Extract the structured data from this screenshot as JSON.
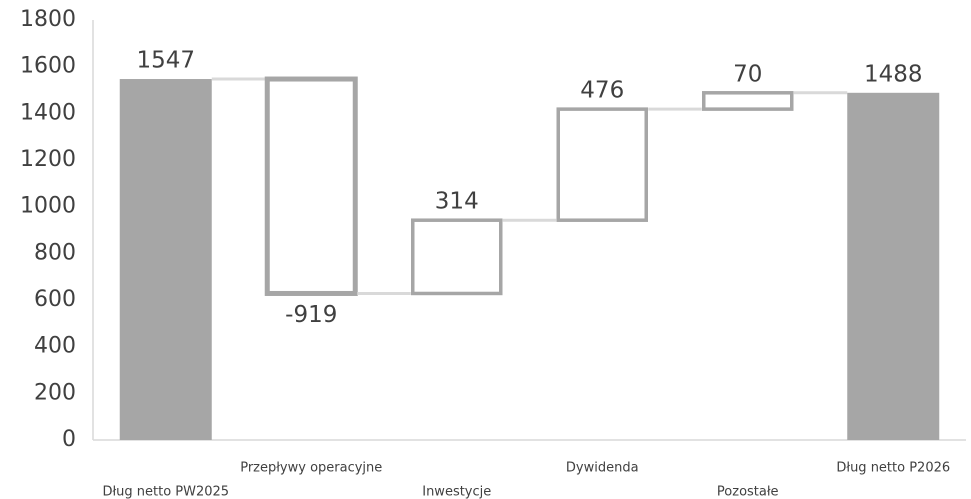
{
  "chart_data": {
    "type": "waterfall",
    "categories": [
      "Dług netto PW2025",
      "Przepływy operacyjne",
      "Inwestycje",
      "Dywidenda",
      "Pozostałe",
      "Dług netto P2026"
    ],
    "values": [
      1547,
      -919,
      314,
      476,
      70,
      1488
    ],
    "total_color": "#a6a6a6",
    "delta_color": "#a6a6a6",
    "connector_color": "#d9d9d9",
    "axis_color": "#d9d9d9",
    "ylim": [
      0,
      1800
    ],
    "yticks": [
      0,
      200,
      400,
      600,
      800,
      1000,
      1200,
      1400,
      1600,
      1800
    ],
    "grid": false
  }
}
